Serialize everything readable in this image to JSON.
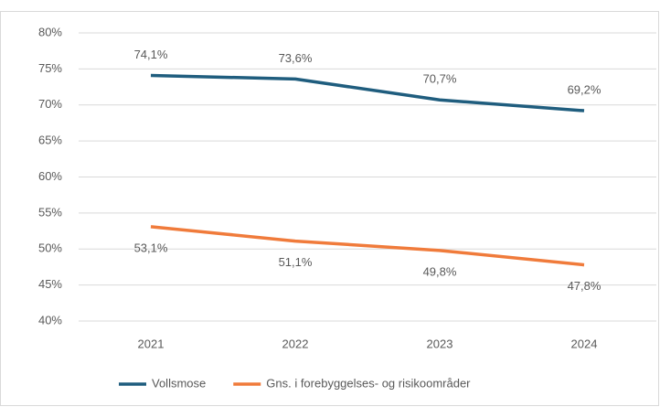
{
  "chart_data": {
    "type": "line",
    "categories": [
      "2021",
      "2022",
      "2023",
      "2024"
    ],
    "series": [
      {
        "name": "Vollsmose",
        "color": "#1f5d7e",
        "values": [
          74.1,
          73.6,
          70.7,
          69.2
        ],
        "value_labels": [
          "74,1%",
          "73,6%",
          "70,7%",
          "69,2%"
        ]
      },
      {
        "name": "Gns. i forebyggelses- og risikoområder",
        "color": "#f07b3b",
        "values": [
          53.1,
          51.1,
          49.8,
          47.8
        ],
        "value_labels": [
          "53,1%",
          "51,1%",
          "49,8%",
          "47,8%"
        ]
      }
    ],
    "ylim": [
      40,
      80
    ],
    "yticks": [
      {
        "value": 40,
        "label": "40%"
      },
      {
        "value": 45,
        "label": "45%"
      },
      {
        "value": 50,
        "label": "50%"
      },
      {
        "value": 55,
        "label": "55%"
      },
      {
        "value": 60,
        "label": "60%"
      },
      {
        "value": 65,
        "label": "65%"
      },
      {
        "value": 70,
        "label": "70%"
      },
      {
        "value": 75,
        "label": "75%"
      },
      {
        "value": 80,
        "label": "80%"
      }
    ],
    "grid": true,
    "legend": "bottom"
  }
}
